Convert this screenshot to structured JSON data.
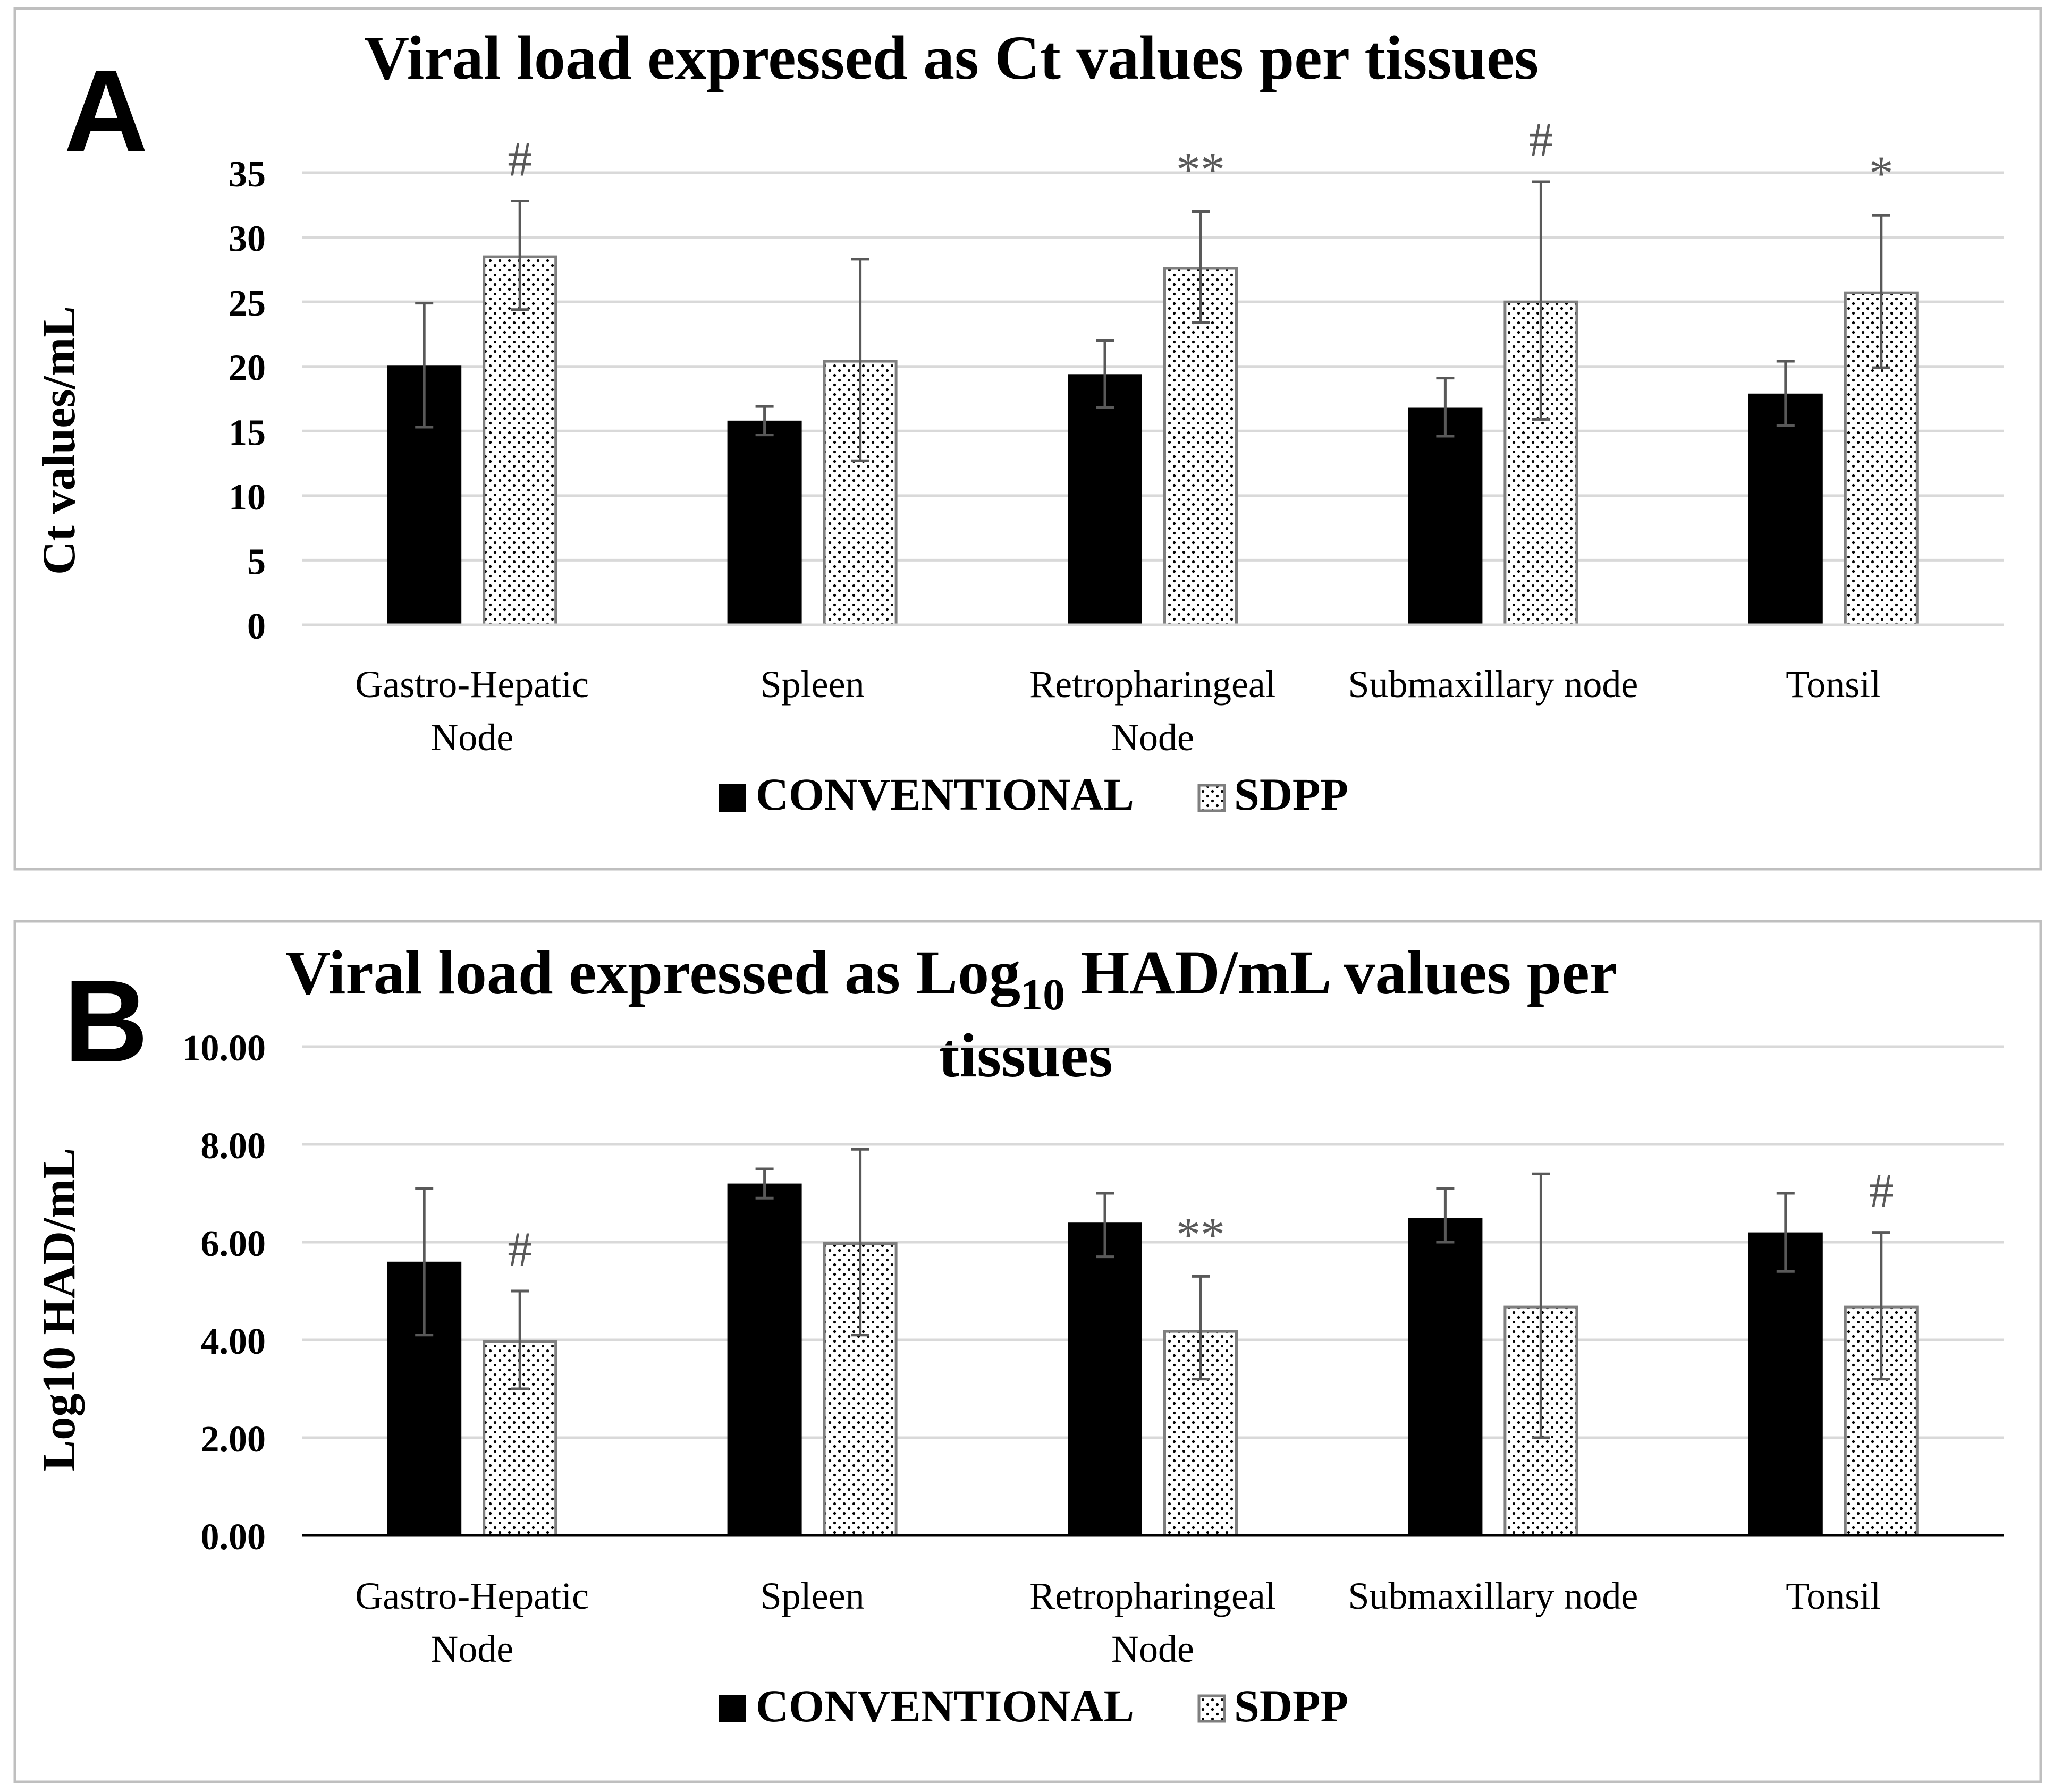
{
  "legend_labels": {
    "conventional": "CONVENTIONAL",
    "sdpp": "SDPP"
  },
  "colors": {
    "conventional": "#000000",
    "sdpp_fill": "#ffffff",
    "sdpp_dots": "#000000",
    "sdpp_border": "#7f7f7f",
    "grid": "#d9d9d9",
    "error_bar": "#595959",
    "axis": "#000000",
    "annotation": "#595959",
    "panel_border": "#bfbfbf"
  },
  "chart_data": [
    {
      "panel": "A",
      "type": "bar",
      "title": "Viral load expressed as Ct values per tissues",
      "xlabel": "",
      "ylabel": "Ct values/mL",
      "ylim": [
        0,
        35
      ],
      "yticks": [
        "0",
        "5",
        "10",
        "15",
        "20",
        "25",
        "30",
        "35"
      ],
      "tick_values": [
        0,
        5,
        10,
        15,
        20,
        25,
        30,
        35
      ],
      "categories": [
        [
          "Gastro-Hepatic",
          "Node"
        ],
        [
          "Spleen"
        ],
        [
          "Retropharingeal",
          "Node"
        ],
        [
          "Submaxillary node"
        ],
        [
          "Tonsil"
        ]
      ],
      "series": [
        {
          "name": "CONVENTIONAL",
          "values": [
            20.1,
            15.8,
            19.4,
            16.8,
            17.9
          ],
          "err_low": [
            15.3,
            14.7,
            16.8,
            14.6,
            15.4
          ],
          "err_high": [
            24.9,
            16.9,
            22.0,
            19.1,
            20.4
          ]
        },
        {
          "name": "SDPP",
          "values": [
            28.6,
            20.5,
            27.7,
            25.1,
            25.8
          ],
          "err_low": [
            24.4,
            12.7,
            23.4,
            15.9,
            19.9
          ],
          "err_high": [
            32.8,
            28.3,
            32.0,
            34.3,
            31.7
          ]
        }
      ],
      "annotations": [
        "#",
        "",
        "**",
        "#",
        "*"
      ]
    },
    {
      "panel": "B",
      "type": "bar",
      "title_parts": [
        "Viral load expressed as Log",
        "10",
        " HAD/mL values per"
      ],
      "title_line2": "tissues",
      "xlabel": "",
      "ylabel": "Log10 HAD/mL",
      "ylim": [
        0,
        10
      ],
      "yticks": [
        "0.00",
        "2.00",
        "4.00",
        "6.00",
        "8.00",
        "10.00"
      ],
      "tick_values": [
        0,
        2,
        4,
        6,
        8,
        10
      ],
      "categories": [
        [
          "Gastro-Hepatic",
          "Node"
        ],
        [
          "Spleen"
        ],
        [
          "Retropharingeal",
          "Node"
        ],
        [
          "Submaxillary node"
        ],
        [
          "Tonsil"
        ]
      ],
      "series": [
        {
          "name": "CONVENTIONAL",
          "values": [
            5.6,
            7.2,
            6.4,
            6.5,
            6.2
          ],
          "err_low": [
            4.1,
            6.9,
            5.7,
            6.0,
            5.4
          ],
          "err_high": [
            7.1,
            7.5,
            7.0,
            7.1,
            7.0
          ]
        },
        {
          "name": "SDPP",
          "values": [
            4.0,
            6.0,
            4.2,
            4.7,
            4.7
          ],
          "err_low": [
            3.0,
            4.1,
            3.2,
            2.0,
            3.2
          ],
          "err_high": [
            5.0,
            7.9,
            5.3,
            7.4,
            6.2
          ]
        }
      ],
      "annotations": [
        "#",
        "",
        "**",
        "",
        "#"
      ]
    }
  ]
}
